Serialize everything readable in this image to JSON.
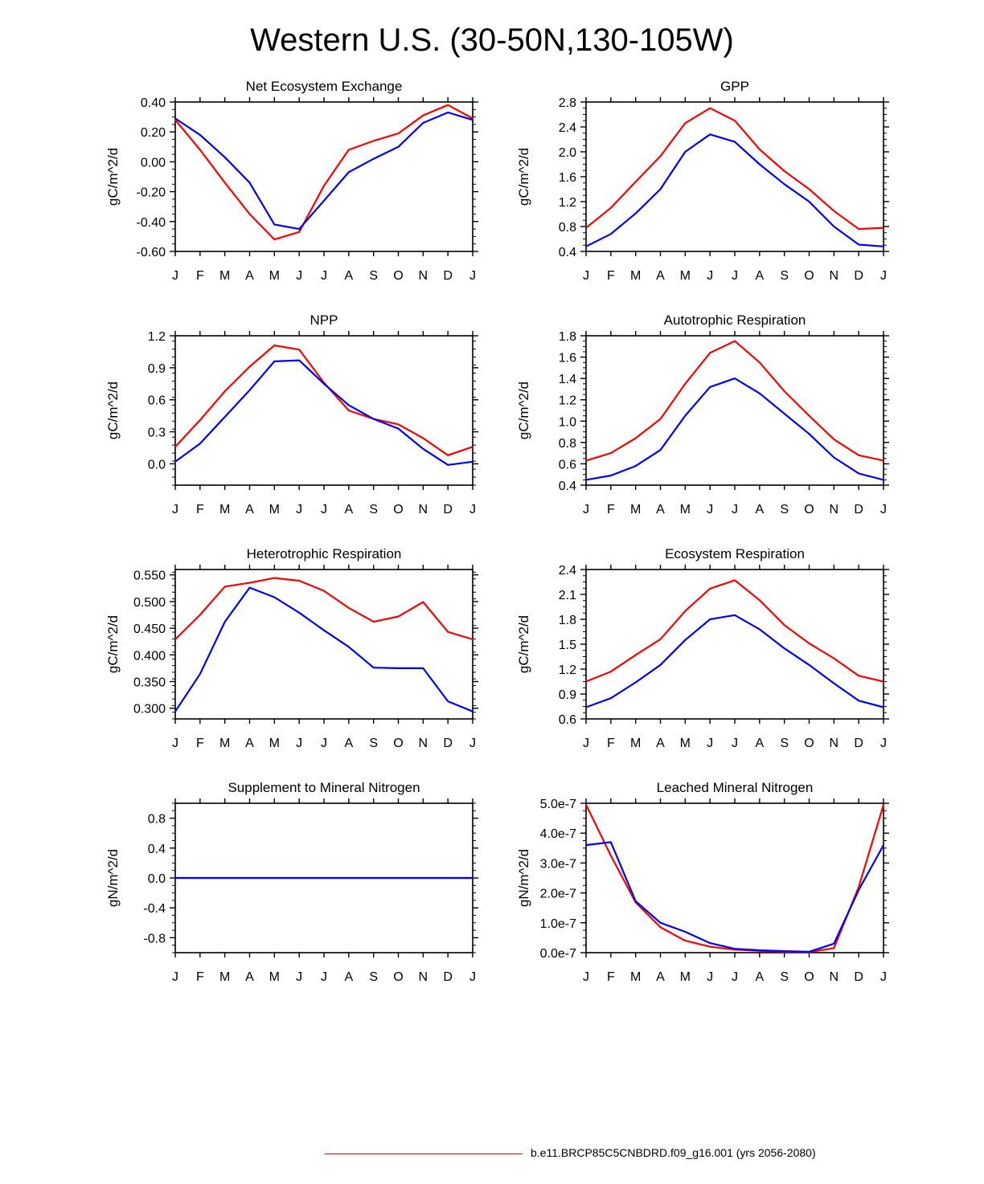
{
  "figure": {
    "title": "Western U.S. (30-50N,130-105W)",
    "colors": {
      "case1": "#ff0000",
      "case2": "#0000ff"
    }
  },
  "legend": {
    "label": "b.e11.BRCP85C5CNBDRD.f09_g16.001 (yrs 2056-2080)",
    "color": "#ff0000"
  },
  "chart_data": [
    {
      "type": "line",
      "title": "Net Ecosystem Exchange",
      "ylabel": "gC/m^2/d",
      "categories": [
        "J",
        "F",
        "M",
        "A",
        "M",
        "J",
        "J",
        "A",
        "S",
        "O",
        "N",
        "D",
        "J"
      ],
      "ylim": [
        -0.6,
        0.4
      ],
      "yticks": [
        -0.6,
        -0.4,
        -0.2,
        0.0,
        0.2,
        0.4
      ],
      "ytick_labels": [
        "-0.60",
        "-0.40",
        "-0.20",
        "0.00",
        "0.20",
        "0.40"
      ],
      "series": [
        {
          "name": "red",
          "color": "#ff0000",
          "values": [
            0.28,
            0.08,
            -0.14,
            -0.35,
            -0.52,
            -0.47,
            -0.16,
            0.08,
            0.14,
            0.19,
            0.31,
            0.38,
            0.29
          ]
        },
        {
          "name": "blue",
          "color": "#0000ff",
          "values": [
            0.29,
            0.18,
            0.03,
            -0.14,
            -0.42,
            -0.45,
            -0.26,
            -0.07,
            0.02,
            0.1,
            0.26,
            0.33,
            0.28
          ]
        }
      ]
    },
    {
      "type": "line",
      "title": "GPP",
      "ylabel": "gC/m^2/d",
      "categories": [
        "J",
        "F",
        "M",
        "A",
        "M",
        "J",
        "J",
        "A",
        "S",
        "O",
        "N",
        "D",
        "J"
      ],
      "ylim": [
        0.4,
        2.8
      ],
      "yticks": [
        0.4,
        0.8,
        1.2,
        1.6,
        2.0,
        2.4,
        2.8
      ],
      "ytick_labels": [
        "0.4",
        "0.8",
        "1.2",
        "1.6",
        "2.0",
        "2.4",
        "2.8"
      ],
      "series": [
        {
          "name": "red",
          "color": "#ff0000",
          "values": [
            0.78,
            1.1,
            1.52,
            1.93,
            2.46,
            2.7,
            2.5,
            2.04,
            1.69,
            1.4,
            1.05,
            0.76,
            0.78
          ]
        },
        {
          "name": "blue",
          "color": "#0000ff",
          "values": [
            0.48,
            0.68,
            1.01,
            1.4,
            2.0,
            2.28,
            2.16,
            1.8,
            1.48,
            1.2,
            0.8,
            0.51,
            0.48
          ]
        }
      ]
    },
    {
      "type": "line",
      "title": "NPP",
      "ylabel": "gC/m^2/d",
      "categories": [
        "J",
        "F",
        "M",
        "A",
        "M",
        "J",
        "J",
        "A",
        "S",
        "O",
        "N",
        "D",
        "J"
      ],
      "ylim": [
        -0.2,
        1.2
      ],
      "yticks": [
        0.0,
        0.3,
        0.6,
        0.9,
        1.2
      ],
      "ytick_labels": [
        "0.0",
        "0.3",
        "0.6",
        "0.9",
        "1.2"
      ],
      "series": [
        {
          "name": "red",
          "color": "#ff0000",
          "values": [
            0.16,
            0.41,
            0.68,
            0.91,
            1.11,
            1.07,
            0.76,
            0.5,
            0.42,
            0.37,
            0.24,
            0.08,
            0.16
          ]
        },
        {
          "name": "blue",
          "color": "#0000ff",
          "values": [
            0.02,
            0.19,
            0.44,
            0.69,
            0.96,
            0.97,
            0.75,
            0.55,
            0.42,
            0.33,
            0.14,
            -0.01,
            0.02
          ]
        }
      ]
    },
    {
      "type": "line",
      "title": "Autotrophic Respiration",
      "ylabel": "gC/m^2/d",
      "categories": [
        "J",
        "F",
        "M",
        "A",
        "M",
        "J",
        "J",
        "A",
        "S",
        "O",
        "N",
        "D",
        "J"
      ],
      "ylim": [
        0.4,
        1.8
      ],
      "yticks": [
        0.4,
        0.6,
        0.8,
        1.0,
        1.2,
        1.4,
        1.6,
        1.8
      ],
      "ytick_labels": [
        "0.4",
        "0.6",
        "0.8",
        "1.0",
        "1.2",
        "1.4",
        "1.6",
        "1.8"
      ],
      "series": [
        {
          "name": "red",
          "color": "#ff0000",
          "values": [
            0.63,
            0.7,
            0.84,
            1.02,
            1.35,
            1.64,
            1.75,
            1.55,
            1.28,
            1.05,
            0.83,
            0.68,
            0.63
          ]
        },
        {
          "name": "blue",
          "color": "#0000ff",
          "values": [
            0.45,
            0.49,
            0.58,
            0.73,
            1.05,
            1.32,
            1.4,
            1.26,
            1.07,
            0.88,
            0.66,
            0.51,
            0.45
          ]
        }
      ]
    },
    {
      "type": "line",
      "title": "Heterotrophic Respiration",
      "ylabel": "gC/m^2/d",
      "categories": [
        "J",
        "F",
        "M",
        "A",
        "M",
        "J",
        "J",
        "A",
        "S",
        "O",
        "N",
        "D",
        "J"
      ],
      "ylim": [
        0.28,
        0.56
      ],
      "yticks": [
        0.3,
        0.35,
        0.4,
        0.45,
        0.5,
        0.55
      ],
      "ytick_labels": [
        "0.300",
        "0.350",
        "0.400",
        "0.450",
        "0.500",
        "0.550"
      ],
      "series": [
        {
          "name": "red",
          "color": "#ff0000",
          "values": [
            0.429,
            0.475,
            0.528,
            0.535,
            0.544,
            0.539,
            0.52,
            0.488,
            0.462,
            0.472,
            0.499,
            0.443,
            0.429
          ]
        },
        {
          "name": "blue",
          "color": "#0000ff",
          "values": [
            0.294,
            0.364,
            0.462,
            0.526,
            0.508,
            0.479,
            0.446,
            0.415,
            0.376,
            0.375,
            0.375,
            0.313,
            0.294
          ]
        }
      ]
    },
    {
      "type": "line",
      "title": "Ecosystem Respiration",
      "ylabel": "gC/m^2/d",
      "categories": [
        "J",
        "F",
        "M",
        "A",
        "M",
        "J",
        "J",
        "A",
        "S",
        "O",
        "N",
        "D",
        "J"
      ],
      "ylim": [
        0.6,
        2.4
      ],
      "yticks": [
        0.6,
        0.9,
        1.2,
        1.5,
        1.8,
        2.1,
        2.4
      ],
      "ytick_labels": [
        "0.6",
        "0.9",
        "1.2",
        "1.5",
        "1.8",
        "2.1",
        "2.4"
      ],
      "series": [
        {
          "name": "red",
          "color": "#ff0000",
          "values": [
            1.05,
            1.17,
            1.37,
            1.56,
            1.9,
            2.17,
            2.27,
            2.03,
            1.73,
            1.51,
            1.33,
            1.12,
            1.05
          ]
        },
        {
          "name": "blue",
          "color": "#0000ff",
          "values": [
            0.74,
            0.85,
            1.04,
            1.25,
            1.55,
            1.8,
            1.85,
            1.68,
            1.45,
            1.25,
            1.03,
            0.82,
            0.74
          ]
        }
      ]
    },
    {
      "type": "line",
      "title": "Supplement to Mineral Nitrogen",
      "ylabel": "gN/m^2/d",
      "categories": [
        "J",
        "F",
        "M",
        "A",
        "M",
        "J",
        "J",
        "A",
        "S",
        "O",
        "N",
        "D",
        "J"
      ],
      "ylim": [
        -1.0,
        1.0
      ],
      "yticks": [
        -0.8,
        -0.4,
        0.0,
        0.4,
        0.8
      ],
      "ytick_labels": [
        "-0.8",
        "-0.4",
        "0.0",
        "0.4",
        "0.8"
      ],
      "series": [
        {
          "name": "red",
          "color": "#ff0000",
          "values": [
            0,
            0,
            0,
            0,
            0,
            0,
            0,
            0,
            0,
            0,
            0,
            0,
            0
          ]
        },
        {
          "name": "blue",
          "color": "#0000ff",
          "values": [
            0,
            0,
            0,
            0,
            0,
            0,
            0,
            0,
            0,
            0,
            0,
            0,
            0
          ]
        }
      ]
    },
    {
      "type": "line",
      "title": "Leached Mineral Nitrogen",
      "ylabel": "gN/m^2/d",
      "categories": [
        "J",
        "F",
        "M",
        "A",
        "M",
        "J",
        "J",
        "A",
        "S",
        "O",
        "N",
        "D",
        "J"
      ],
      "ylim": [
        0,
        5e-07
      ],
      "yticks": [
        0,
        1e-07,
        2e-07,
        3e-07,
        4e-07,
        5e-07
      ],
      "ytick_labels": [
        "0.0e-7",
        "1.0e-7",
        "2.0e-7",
        "3.0e-7",
        "4.0e-7",
        "5.0e-7"
      ],
      "series": [
        {
          "name": "red",
          "color": "#ff0000",
          "values": [
            4.95e-07,
            3.25e-07,
            1.68e-07,
            8.5e-08,
            4e-08,
            2e-08,
            1e-08,
            6e-09,
            3e-09,
            2e-09,
            1.5e-08,
            2.2e-07,
            4.95e-07
          ]
        },
        {
          "name": "blue",
          "color": "#0000ff",
          "values": [
            3.6e-07,
            3.7e-07,
            1.72e-07,
            1e-07,
            7e-08,
            3.2e-08,
            1.3e-08,
            8e-09,
            5e-09,
            3e-09,
            3e-08,
            2.1e-07,
            3.6e-07
          ]
        }
      ]
    }
  ]
}
